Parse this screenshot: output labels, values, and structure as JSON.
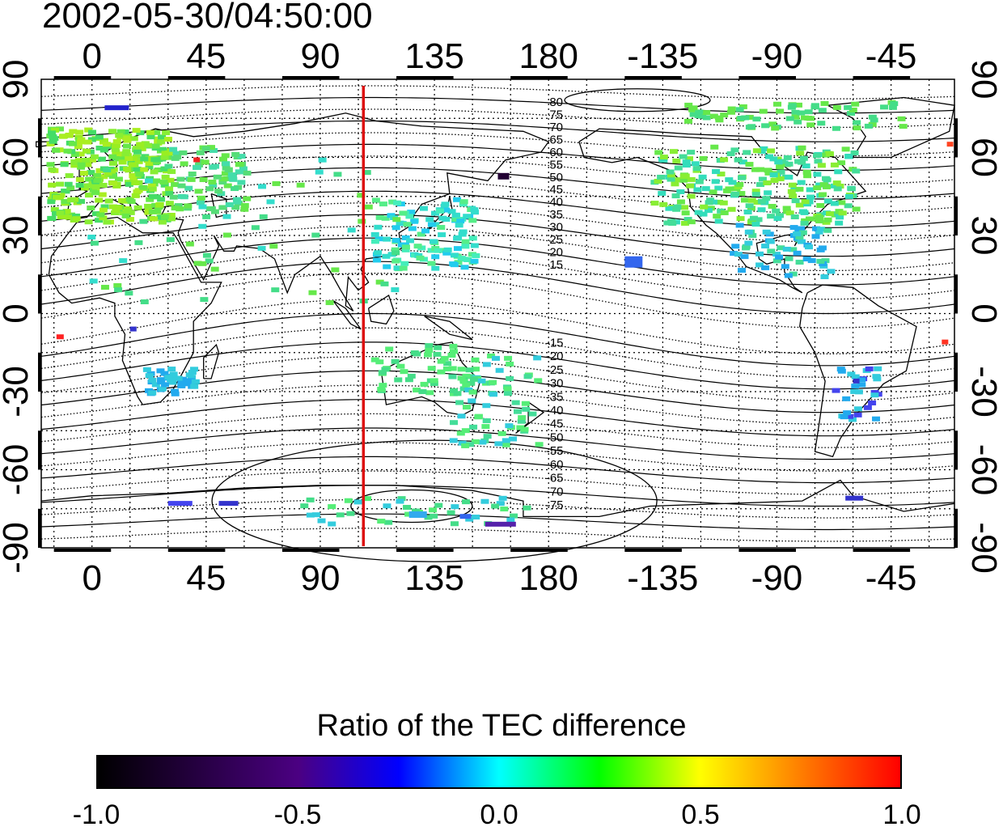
{
  "map": {
    "timestamp": "2002-05-30/04:50:00",
    "projection": "equirectangular",
    "longitude_range_deg": [
      -20,
      340
    ],
    "latitude_range_deg": [
      -90,
      90
    ],
    "lon_tick_labels": [
      "0",
      "45",
      "90",
      "135",
      "180",
      "-135",
      "-90",
      "-45"
    ],
    "lat_tick_labels": [
      "90",
      "60",
      "30",
      "0",
      "-30",
      "-60",
      "-90"
    ],
    "terminator_longitude_deg": 107,
    "terminator_color": "#dd1111",
    "contour_labels_north": [
      "80",
      "75",
      "70",
      "65",
      "60",
      "55",
      "50",
      "45",
      "40",
      "35",
      "30",
      "25",
      "20",
      "15"
    ],
    "contour_labels_south": [
      "-15",
      "-20",
      "-25",
      "-30",
      "-35",
      "-40",
      "-45",
      "-50",
      "-55",
      "-60",
      "-65",
      "-70",
      "-75"
    ],
    "contour_label_longitude_deg": 176
  },
  "colorbar": {
    "title": "Ratio of the TEC difference",
    "tick_labels": [
      "-1.0",
      "-0.5",
      "0.0",
      "0.5",
      "1.0"
    ],
    "min": -1.0,
    "max": 1.0,
    "colors": [
      "#000000",
      "#4b0082",
      "#0000ff",
      "#00ffff",
      "#00ff00",
      "#ffff00",
      "#ff7f00",
      "#ff0000"
    ]
  }
}
